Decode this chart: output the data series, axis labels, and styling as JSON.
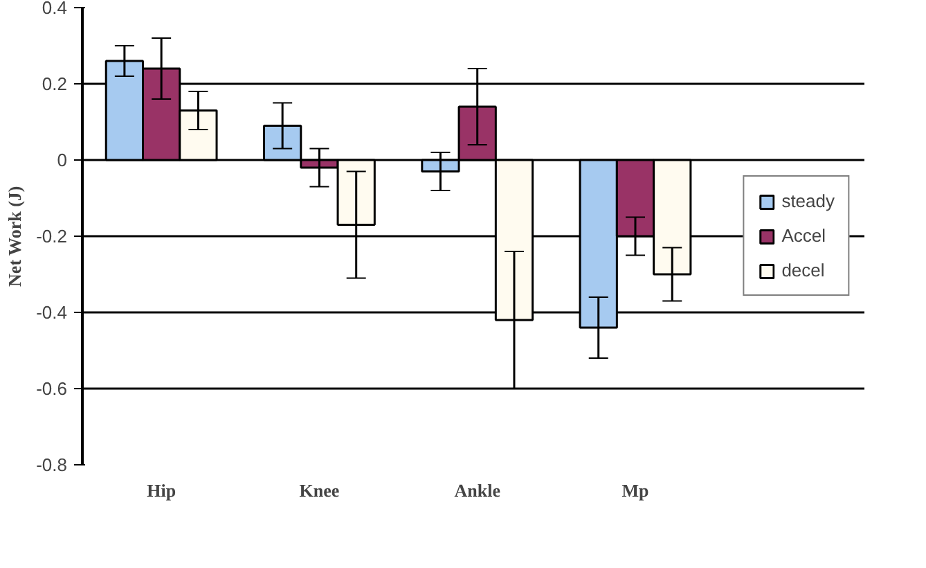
{
  "chart_data": {
    "type": "bar",
    "ylabel": "Net Work (J)",
    "categories": [
      "Hip",
      "Knee",
      "Ankle",
      "Mp"
    ],
    "series": [
      {
        "name": "steady",
        "color": "#a6caf0",
        "values": [
          0.26,
          0.09,
          -0.03,
          -0.44
        ],
        "errors": [
          0.04,
          0.06,
          0.05,
          0.08
        ]
      },
      {
        "name": "Accel",
        "color": "#993366",
        "values": [
          0.24,
          -0.02,
          0.14,
          -0.2
        ],
        "errors": [
          0.08,
          0.05,
          0.1,
          0.05
        ]
      },
      {
        "name": "decel",
        "color": "#fffbf0",
        "values": [
          0.13,
          -0.17,
          -0.42,
          -0.3
        ],
        "errors": [
          0.05,
          0.14,
          0.18,
          0.07
        ]
      }
    ],
    "ylim": [
      -0.8,
      0.4
    ],
    "yticks": [
      -0.8,
      -0.6,
      -0.4,
      -0.2,
      0,
      0.2,
      0.4
    ],
    "grid": "y",
    "legend": "right"
  }
}
